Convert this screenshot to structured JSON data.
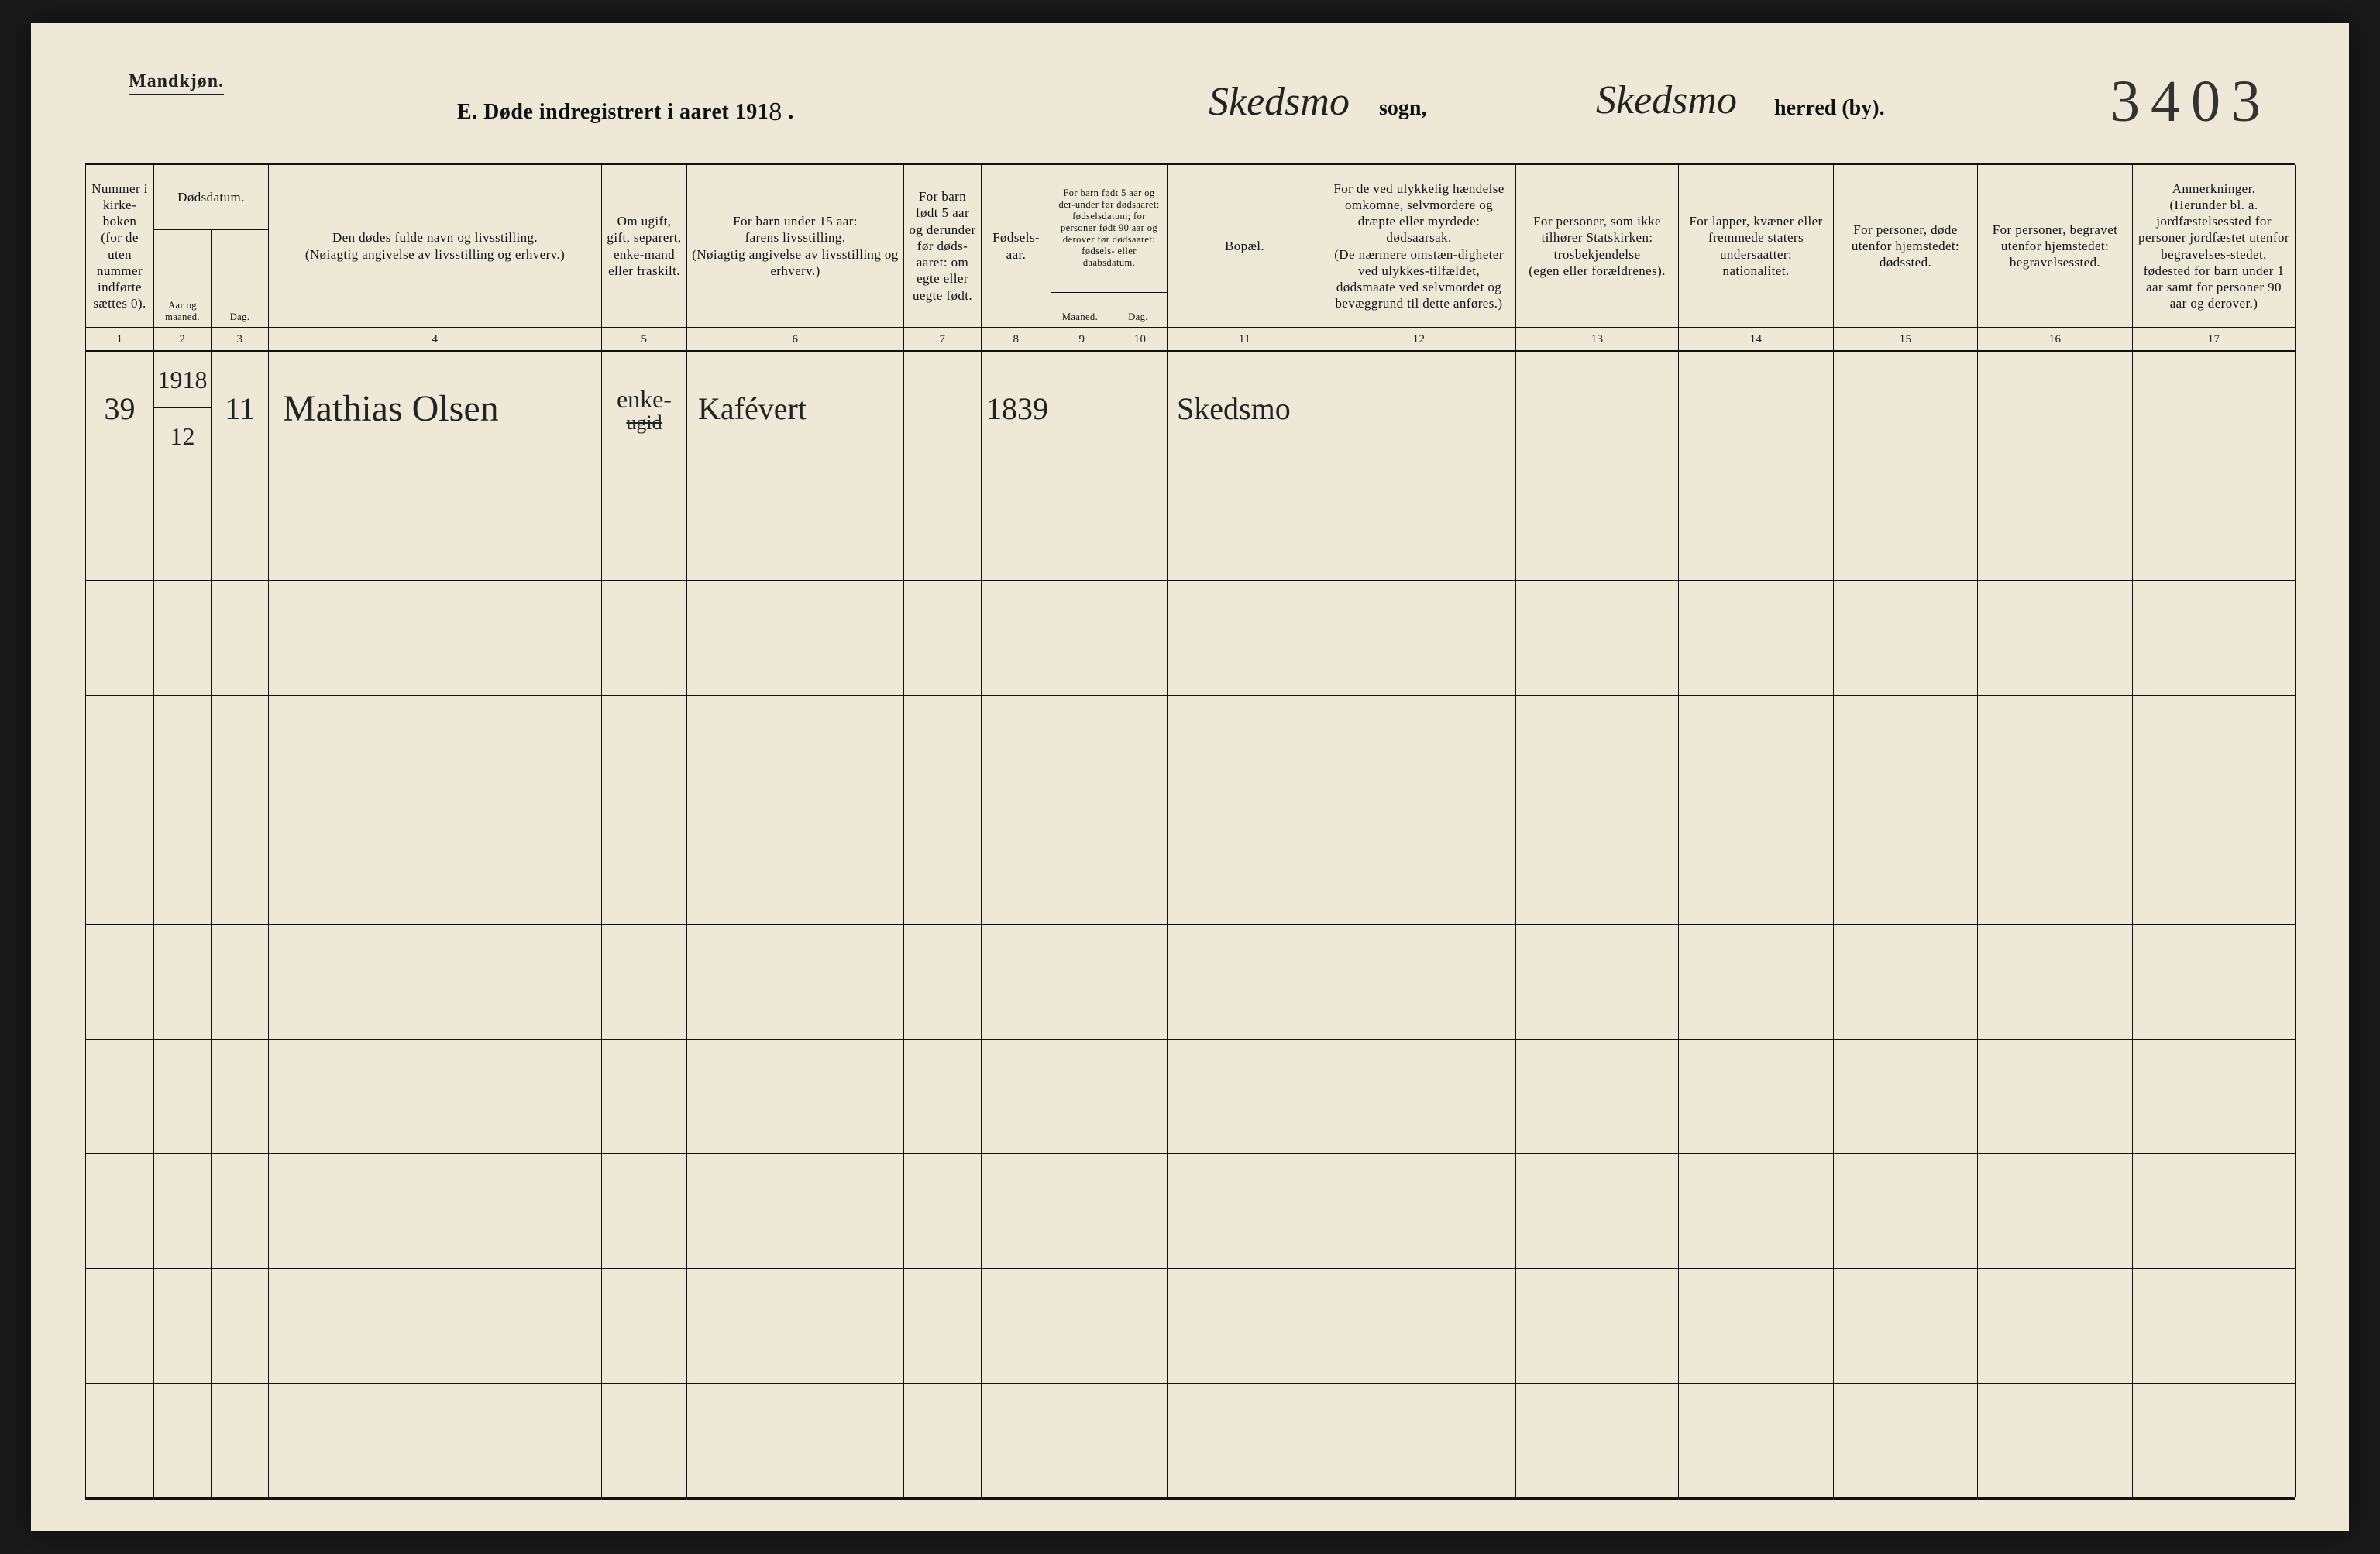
{
  "page": {
    "gender_label": "Mandkjøn.",
    "title_prefix": "E.   Døde indregistrert i aaret 191",
    "title_year_hand": "8",
    "title_suffix": " .",
    "sogn_hand": "Skedsmo",
    "sogn_label": "sogn,",
    "herred_hand": "Skedsmo",
    "herred_label": "herred (by).",
    "page_number_hand": "3403"
  },
  "headers": {
    "c1": "Nummer i kirke-boken (for de uten nummer indførte sættes 0).",
    "c2_title": "Dødsdatum.",
    "c2_a": "Aar og maaned.",
    "c2_b": "Dag.",
    "c4": "Den dødes fulde navn og livsstilling.\n(Nøiagtig angivelse av livsstilling og erhverv.)",
    "c5": "Om ugift, gift, separert, enke-mand eller fraskilt.",
    "c6": "For barn under 15 aar:\nfarens livsstilling.\n(Nøiagtig angivelse av livsstilling og erhverv.)",
    "c7": "For barn født 5 aar og derunder før døds-aaret: om egte eller uegte født.",
    "c8": "Fødsels-aar.",
    "c9_title": "For barn født 5 aar og der-under før dødsaaret: fødselsdatum; for personer født 90 aar og derover før dødsaaret: fødsels- eller daabsdatum.",
    "c9_a": "Maaned.",
    "c9_b": "Dag.",
    "c11": "Bopæl.",
    "c12": "For de ved ulykkelig hændelse omkomne, selvmordere og dræpte eller myrdede: dødsaarsak.\n(De nærmere omstæn-digheter ved ulykkes-tilfældet, dødsmaate ved selvmordet og bevæggrund til dette anføres.)",
    "c13": "For personer, som ikke tilhører Statskirken:\ntrosbekjendelse\n(egen eller forældrenes).",
    "c14": "For lapper, kvæner eller fremmede staters undersaatter:\nnationalitet.",
    "c15": "For personer, døde utenfor hjemstedet:\ndødssted.",
    "c16": "For personer, begravet utenfor hjemstedet:\nbegravelsessted.",
    "c17": "Anmerkninger.\n(Herunder bl. a. jordfæstelsessted for personer jordfæstet utenfor begravelses-stedet, fødested for barn under 1 aar samt for personer 90 aar og derover.)",
    "nums": [
      "1",
      "2",
      "3",
      "4",
      "5",
      "6",
      "7",
      "8",
      "9",
      "10",
      "11",
      "12",
      "13",
      "14",
      "15",
      "16",
      "17"
    ]
  },
  "rows": [
    {
      "c1": "39",
      "c2_top": "1918",
      "c2_bot": "12",
      "c3": "11",
      "c4": "Mathias  Olsen",
      "c5_top": "enke-",
      "c5_bot_strike": "ugid",
      "c6": "Kafévert",
      "c7": "",
      "c8": "1839",
      "c9": "",
      "c10": "",
      "c11": "Skedsmo",
      "c12": "",
      "c13": "",
      "c14": "",
      "c15": "",
      "c16": "",
      "c17": ""
    },
    {},
    {},
    {},
    {},
    {},
    {},
    {},
    {},
    {}
  ],
  "style": {
    "paper_bg": "#ede9d6",
    "ink": "#111111",
    "hand_ink": "#232323"
  }
}
